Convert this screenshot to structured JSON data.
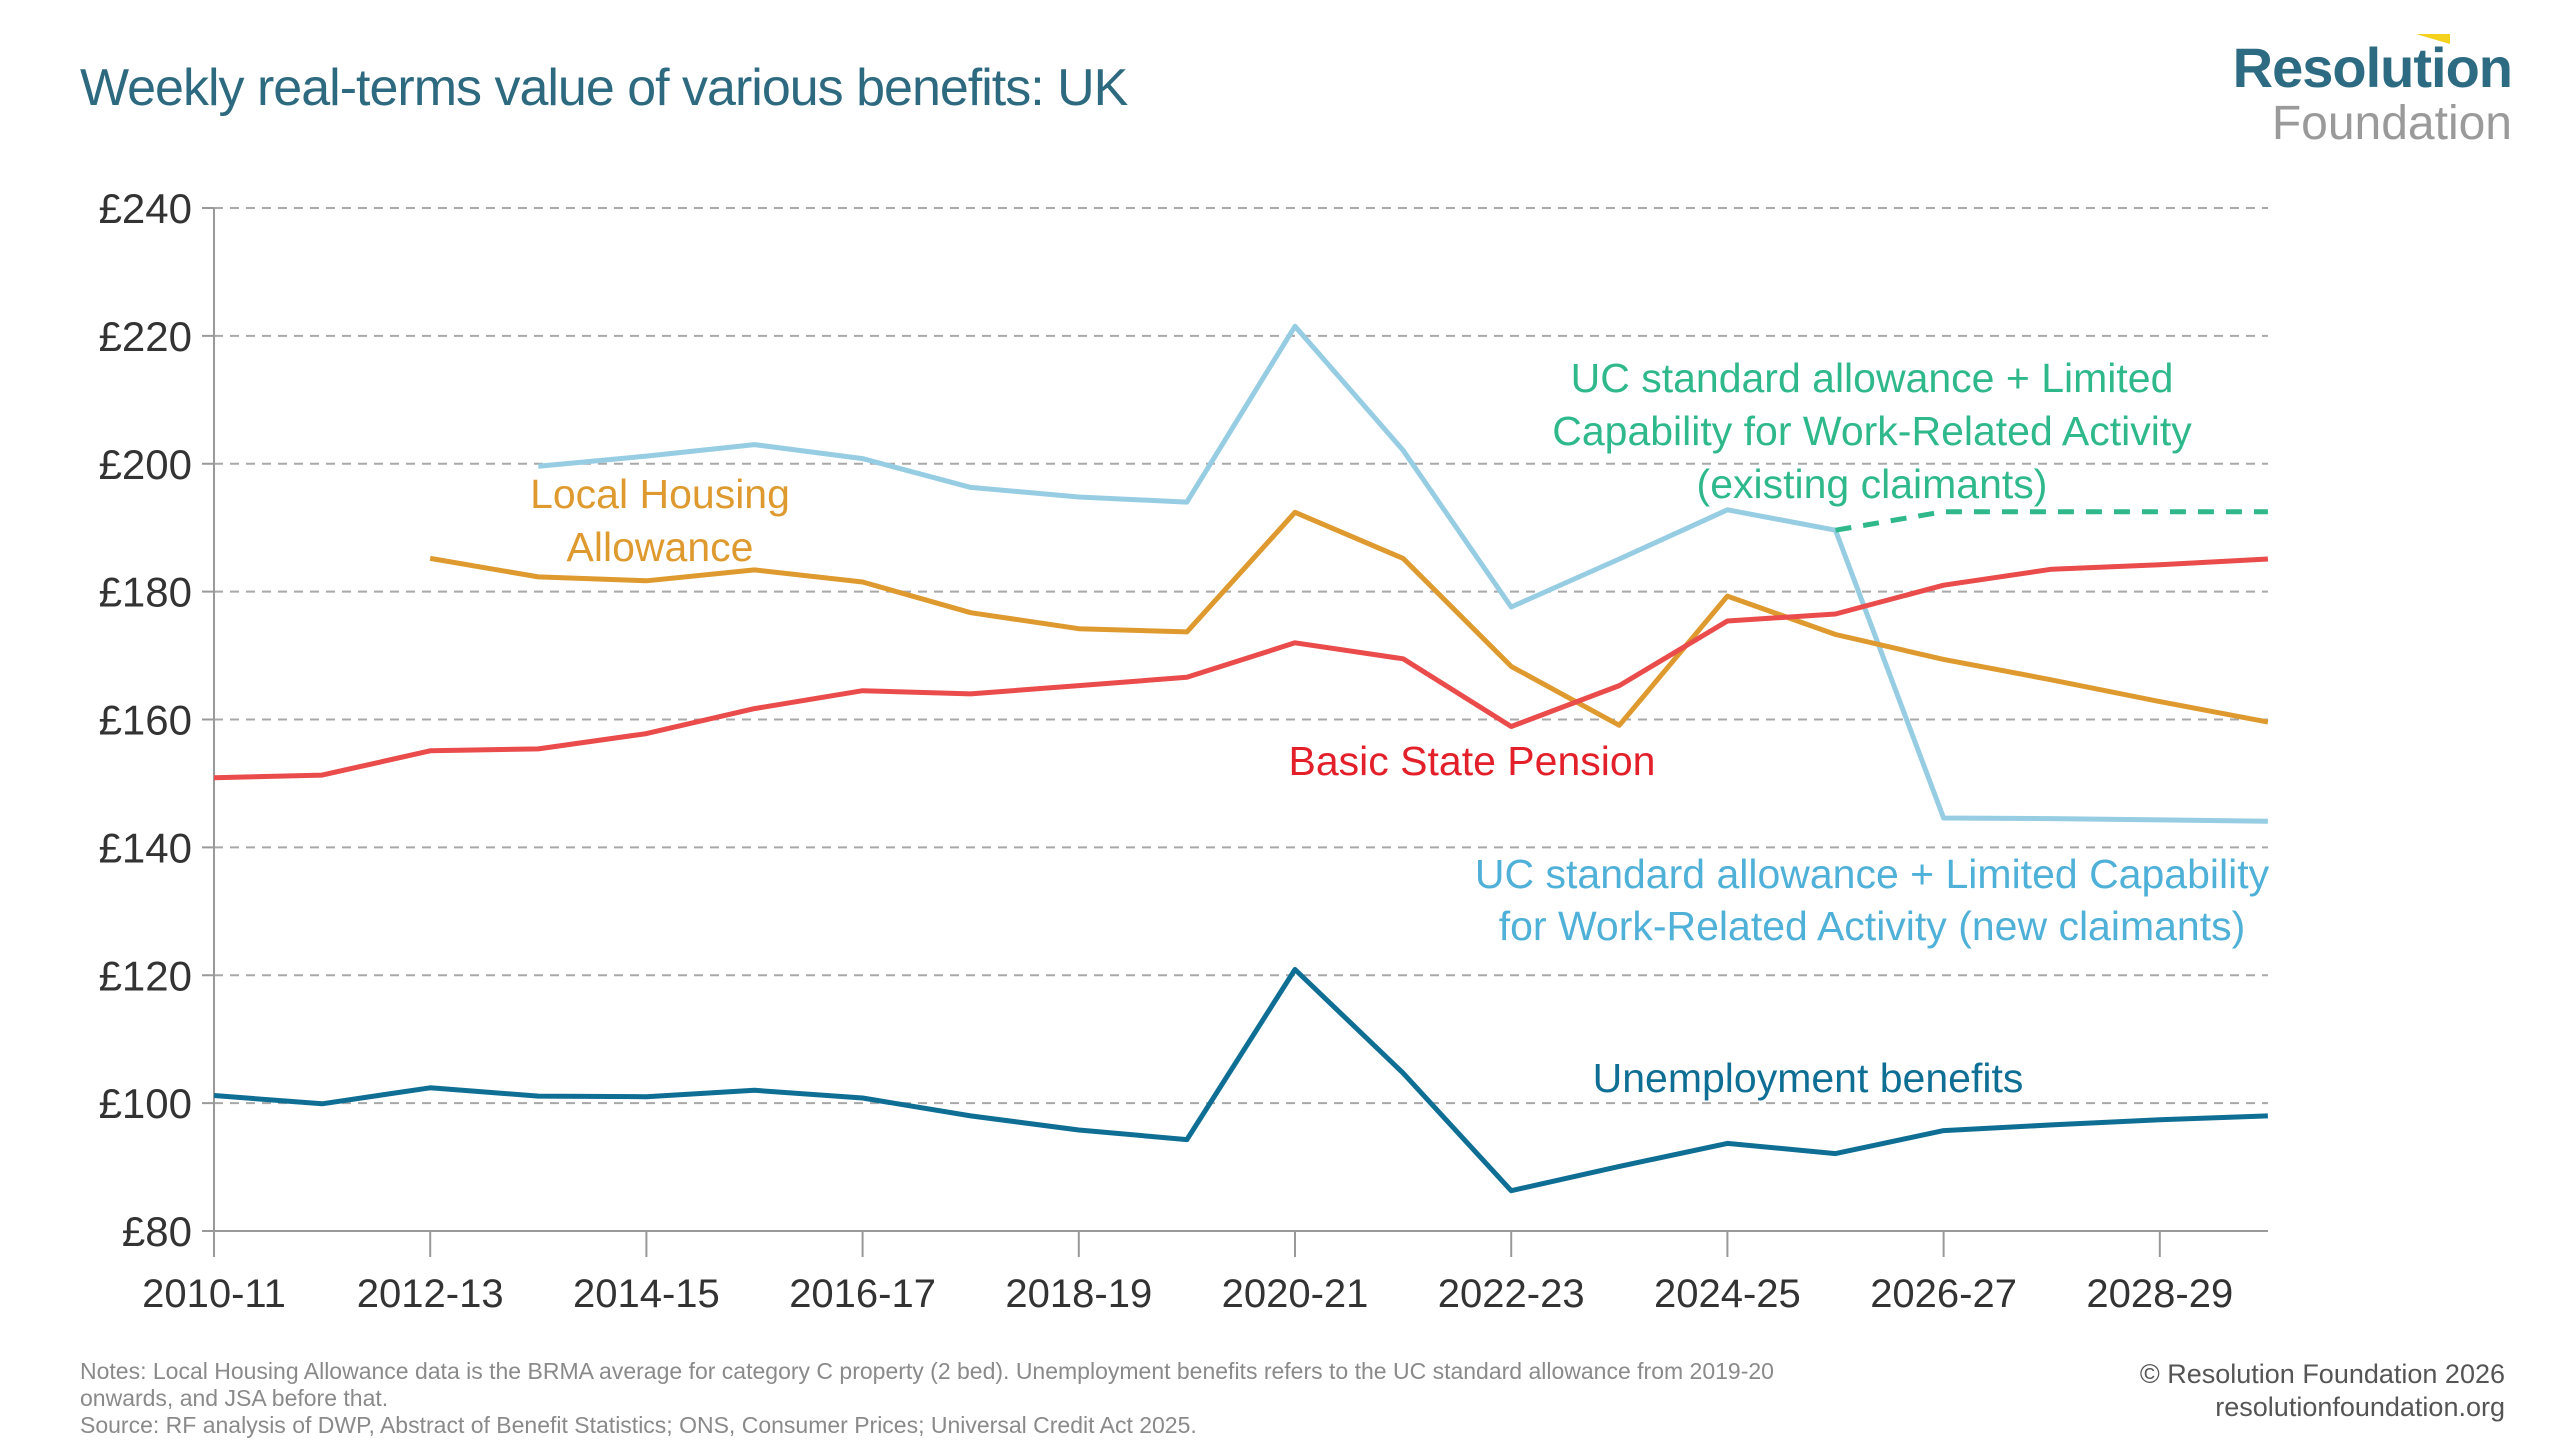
{
  "header": {
    "title": "Weekly real-terms value of various benefits: UK",
    "logo_top": "Resolution",
    "logo_bottom": "Foundation"
  },
  "footer": {
    "notes_line1": "Notes: Local Housing Allowance data is the BRMA average for category C property (2 bed). Unemployment benefits refers to the UC standard allowance from 2019-20",
    "notes_line2": "onwards, and JSA before that.",
    "source": "Source: RF analysis of DWP, Abstract of Benefit Statistics; ONS, Consumer Prices; Universal Credit Act 2025.",
    "copyright": "© Resolution Foundation 2026",
    "website": "resolutionfoundation.org"
  },
  "chart_data": {
    "type": "line",
    "title": "Weekly real-terms value of various benefits: UK",
    "xlabel": "",
    "ylabel": "",
    "ylim": [
      80,
      240
    ],
    "yticks": [
      80,
      100,
      120,
      140,
      160,
      180,
      200,
      220,
      240
    ],
    "ytick_labels": [
      "£80",
      "£100",
      "£120",
      "£140",
      "£160",
      "£180",
      "£200",
      "£220",
      "£240"
    ],
    "grid": true,
    "x": [
      "2010-11",
      "2011-12",
      "2012-13",
      "2013-14",
      "2014-15",
      "2015-16",
      "2016-17",
      "2017-18",
      "2018-19",
      "2019-20",
      "2020-21",
      "2021-22",
      "2022-23",
      "2023-24",
      "2024-25",
      "2025-26",
      "2026-27",
      "2027-28",
      "2028-29",
      "2029-30"
    ],
    "xtick_labels": [
      "2010-11",
      "2012-13",
      "2014-15",
      "2016-17",
      "2018-19",
      "2020-21",
      "2022-23",
      "2024-25",
      "2026-27",
      "2028-29"
    ],
    "series": [
      {
        "name": "UC standard allowance + Limited Capability for Work-Related Activity (new claimants)",
        "label_lines": [
          "UC standard allowance + Limited Capability",
          "for Work-Related Activity (new claimants)"
        ],
        "color": "#96cde3",
        "label_color": "#4fb0d8",
        "dashed": false,
        "values": [
          null,
          null,
          null,
          199.6,
          201.2,
          203.0,
          200.8,
          196.3,
          194.8,
          194.0,
          221.5,
          202.1,
          177.6,
          185.1,
          192.8,
          189.6,
          144.6,
          144.5,
          144.3,
          144.1
        ]
      },
      {
        "name": "UC standard allowance + Limited Capability for Work-Related Activity (existing claimants)",
        "label_lines": [
          "UC standard allowance + Limited",
          "Capability for Work-Related Activity",
          "(existing claimants)"
        ],
        "color": "#2fb98a",
        "label_color": "#2fb98a",
        "dashed": true,
        "values": [
          null,
          null,
          null,
          null,
          null,
          null,
          null,
          null,
          null,
          null,
          null,
          null,
          null,
          null,
          null,
          189.6,
          192.5,
          192.5,
          192.5,
          192.5
        ]
      },
      {
        "name": "Local Housing Allowance",
        "label_lines": [
          "Local Housing",
          "Allowance"
        ],
        "color": "#de9a2e",
        "label_color": "#de9a2e",
        "dashed": false,
        "values": [
          null,
          null,
          185.2,
          182.3,
          181.7,
          183.4,
          181.5,
          176.7,
          174.2,
          173.7,
          192.4,
          185.2,
          168.3,
          159.1,
          179.3,
          173.3,
          169.4,
          166.2,
          162.8,
          159.6
        ]
      },
      {
        "name": "Basic State Pension",
        "label_lines": [
          "Basic State Pension"
        ],
        "color": "#ea4b4b",
        "label_color": "#e3202a",
        "dashed": false,
        "values": [
          150.9,
          151.3,
          155.1,
          155.4,
          157.8,
          161.7,
          164.5,
          164.0,
          165.3,
          166.6,
          172.0,
          169.5,
          158.9,
          165.3,
          175.4,
          176.5,
          181.0,
          183.5,
          184.2,
          185.1
        ]
      },
      {
        "name": "Unemployment benefits",
        "label_lines": [
          "Unemployment benefits"
        ],
        "color": "#0f6e94",
        "label_color": "#0f6e94",
        "dashed": false,
        "values": [
          101.2,
          99.9,
          102.4,
          101.1,
          101.0,
          102.0,
          100.8,
          98.0,
          95.8,
          94.3,
          120.9,
          104.7,
          86.3,
          90.1,
          93.7,
          92.1,
          95.7,
          96.6,
          97.4,
          98.0
        ]
      }
    ]
  }
}
